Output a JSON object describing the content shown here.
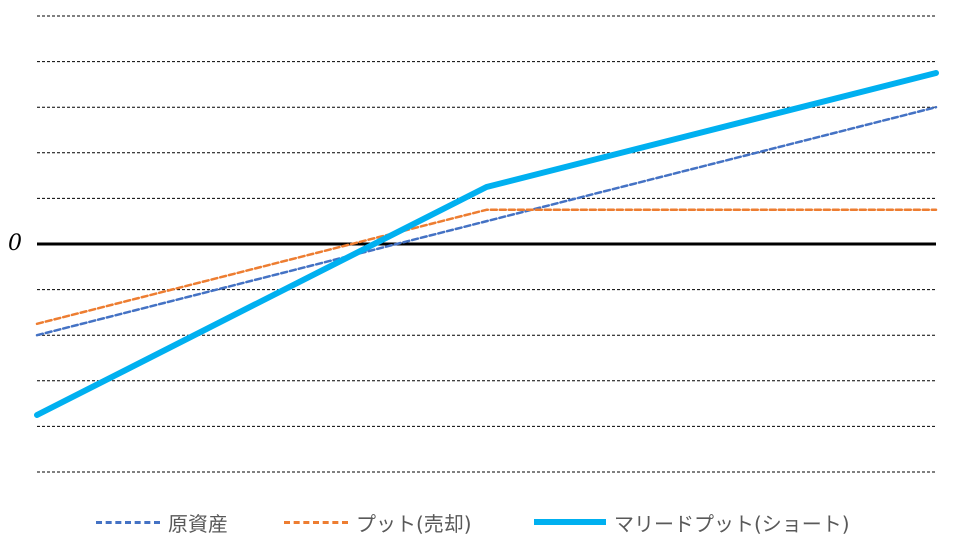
{
  "chart_data": {
    "type": "line",
    "title": "",
    "xlabel": "",
    "ylabel": "",
    "y_tick_labels": [
      "0"
    ],
    "grid": "horizontal dashed",
    "legend_position": "bottom",
    "xlim": [
      0,
      100
    ],
    "ylim": [
      -5,
      5
    ],
    "series": [
      {
        "name": "原資産",
        "style": "dashed",
        "color": "#4472C4",
        "x": [
          0,
          100
        ],
        "y": [
          -2,
          3
        ]
      },
      {
        "name": "プット(売却)",
        "style": "dashed",
        "color": "#ED7D31",
        "x": [
          0,
          50,
          100
        ],
        "y": [
          -1.75,
          0.75,
          0.75
        ]
      },
      {
        "name": "マリードプット(ショート)",
        "style": "solid-thick",
        "color": "#00B0F0",
        "x": [
          0,
          50,
          100
        ],
        "y": [
          -3.75,
          1.25,
          3.75
        ]
      }
    ],
    "reference_line": {
      "y": 0,
      "label": "0"
    }
  }
}
